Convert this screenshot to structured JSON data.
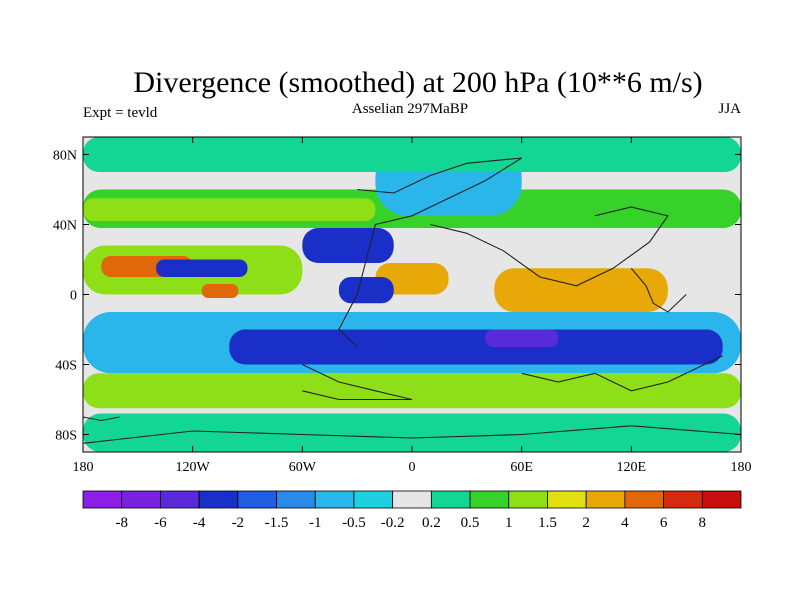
{
  "chart_data": {
    "type": "heatmap",
    "title": "Divergence (smoothed) at 200 hPa (10**6 m/s)",
    "subtitle_left": "Expt = tevld",
    "subtitle_center": "Asselian 297MaBP",
    "subtitle_right": "JJA",
    "xlim": [
      -180,
      180
    ],
    "ylim": [
      -90,
      90
    ],
    "x_ticks": [
      {
        "value": -180,
        "label": "180"
      },
      {
        "value": -120,
        "label": "120W"
      },
      {
        "value": -60,
        "label": "60W"
      },
      {
        "value": 0,
        "label": "0"
      },
      {
        "value": 60,
        "label": "60E"
      },
      {
        "value": 120,
        "label": "120E"
      },
      {
        "value": 180,
        "label": "180"
      }
    ],
    "y_ticks": [
      {
        "value": 80,
        "label": "80N"
      },
      {
        "value": 40,
        "label": "40N"
      },
      {
        "value": 0,
        "label": "0"
      },
      {
        "value": -40,
        "label": "40S"
      },
      {
        "value": -80,
        "label": "80S"
      }
    ],
    "colorbar": {
      "labels": [
        "-8",
        "-6",
        "-4",
        "-2",
        "-1.5",
        "-1",
        "-0.5",
        "-0.2",
        "0.2",
        "0.5",
        "1",
        "1.5",
        "2",
        "4",
        "6",
        "8"
      ],
      "colors": [
        "#8c1ee6",
        "#7a22e0",
        "#5a2ad8",
        "#1a2ec8",
        "#1e5ee0",
        "#2a8ae8",
        "#2ab6ea",
        "#1ed0e0",
        "#e6e6e6",
        "#14d694",
        "#36d22a",
        "#8ede18",
        "#e0e012",
        "#e8a808",
        "#e06808",
        "#d42a0e",
        "#c80e0e"
      ]
    },
    "field_regions": [
      {
        "level": "0.5",
        "lon": [
          -180,
          180
        ],
        "lat": [
          38,
          60
        ]
      },
      {
        "level": "1",
        "lon": [
          -180,
          -20
        ],
        "lat": [
          42,
          55
        ]
      },
      {
        "level": "-0.5",
        "lon": [
          -20,
          60
        ],
        "lat": [
          45,
          85
        ]
      },
      {
        "level": "1",
        "lon": [
          -180,
          -60
        ],
        "lat": [
          0,
          28
        ]
      },
      {
        "level": "4",
        "lon": [
          -170,
          -120
        ],
        "lat": [
          10,
          22
        ]
      },
      {
        "level": "4",
        "lon": [
          -115,
          -95
        ],
        "lat": [
          -2,
          6
        ]
      },
      {
        "level": "-2",
        "lon": [
          -140,
          -90
        ],
        "lat": [
          10,
          20
        ]
      },
      {
        "level": "-2",
        "lon": [
          -60,
          -10
        ],
        "lat": [
          18,
          38
        ]
      },
      {
        "level": "2",
        "lon": [
          -20,
          20
        ],
        "lat": [
          0,
          18
        ]
      },
      {
        "level": "-2",
        "lon": [
          -40,
          -10
        ],
        "lat": [
          -5,
          10
        ]
      },
      {
        "level": "2",
        "lon": [
          45,
          140
        ],
        "lat": [
          -10,
          15
        ]
      },
      {
        "level": "-0.5",
        "lon": [
          -180,
          180
        ],
        "lat": [
          -45,
          -10
        ]
      },
      {
        "level": "-2",
        "lon": [
          -100,
          170
        ],
        "lat": [
          -40,
          -20
        ]
      },
      {
        "level": "-4",
        "lon": [
          40,
          80
        ],
        "lat": [
          -30,
          -20
        ]
      },
      {
        "level": "1",
        "lon": [
          -180,
          180
        ],
        "lat": [
          -65,
          -45
        ]
      },
      {
        "level": "0.2",
        "lon": [
          -180,
          180
        ],
        "lat": [
          -90,
          -68
        ]
      },
      {
        "level": "0.2",
        "lon": [
          -180,
          180
        ],
        "lat": [
          70,
          90
        ]
      }
    ]
  }
}
